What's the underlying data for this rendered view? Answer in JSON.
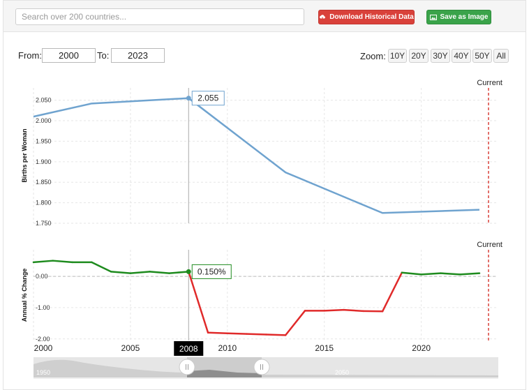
{
  "search": {
    "placeholder": "Search over 200 countries..."
  },
  "toolbar": {
    "download_label": "Download Historical Data",
    "save_label": "Save as Image"
  },
  "range": {
    "from_label": "From:",
    "from_value": "2000",
    "to_label": "To:",
    "to_value": "2023"
  },
  "zoom": {
    "label": "Zoom:",
    "options": [
      "10Y",
      "20Y",
      "30Y",
      "40Y",
      "50Y",
      "All"
    ]
  },
  "colors": {
    "line_top": "#6fa3cf",
    "positive": "#1e8b1e",
    "negative": "#e02a2a",
    "current_marker": "#d9413a"
  },
  "chart_data": [
    {
      "type": "line",
      "ylabel": "Births per Woman",
      "ylim": [
        1.75,
        2.08
      ],
      "yticks": [
        "2.050",
        "2.000",
        "1.950",
        "1.900",
        "1.850",
        "1.800",
        "1.750"
      ],
      "current_label": "Current",
      "tooltip": {
        "x": 2008,
        "text": "2.055"
      },
      "series": [
        {
          "x": [
            2000,
            2003,
            2008,
            2013,
            2018,
            2023
          ],
          "y": [
            2.01,
            2.042,
            2.055,
            1.874,
            1.775,
            1.783
          ]
        }
      ]
    },
    {
      "type": "line",
      "ylabel": "Annual % Change",
      "ylim": [
        -2.05,
        0.85
      ],
      "yticks": [
        "0.00",
        "-1.00",
        "-2.00"
      ],
      "current_label": "Current",
      "tooltip": {
        "x": 2008,
        "text": "0.150%"
      },
      "series": [
        {
          "x": [
            2000,
            2001,
            2002,
            2003,
            2004,
            2005,
            2006,
            2007,
            2008,
            2009,
            2010,
            2011,
            2012,
            2013,
            2014,
            2015,
            2016,
            2017,
            2018,
            2019,
            2020,
            2021,
            2022,
            2023
          ],
          "y": [
            0.45,
            0.5,
            0.45,
            0.45,
            0.15,
            0.1,
            0.15,
            0.1,
            0.15,
            -1.8,
            -1.82,
            -1.84,
            -1.86,
            -1.88,
            -1.1,
            -1.1,
            -1.07,
            -1.11,
            -1.12,
            0.12,
            0.06,
            0.1,
            0.06,
            0.1
          ]
        }
      ],
      "xticks": [
        "2000",
        "2005",
        "2010",
        "2015",
        "2020"
      ],
      "x_highlight": "2008"
    }
  ],
  "navigator": {
    "labels": [
      "1950",
      "2050"
    ]
  }
}
